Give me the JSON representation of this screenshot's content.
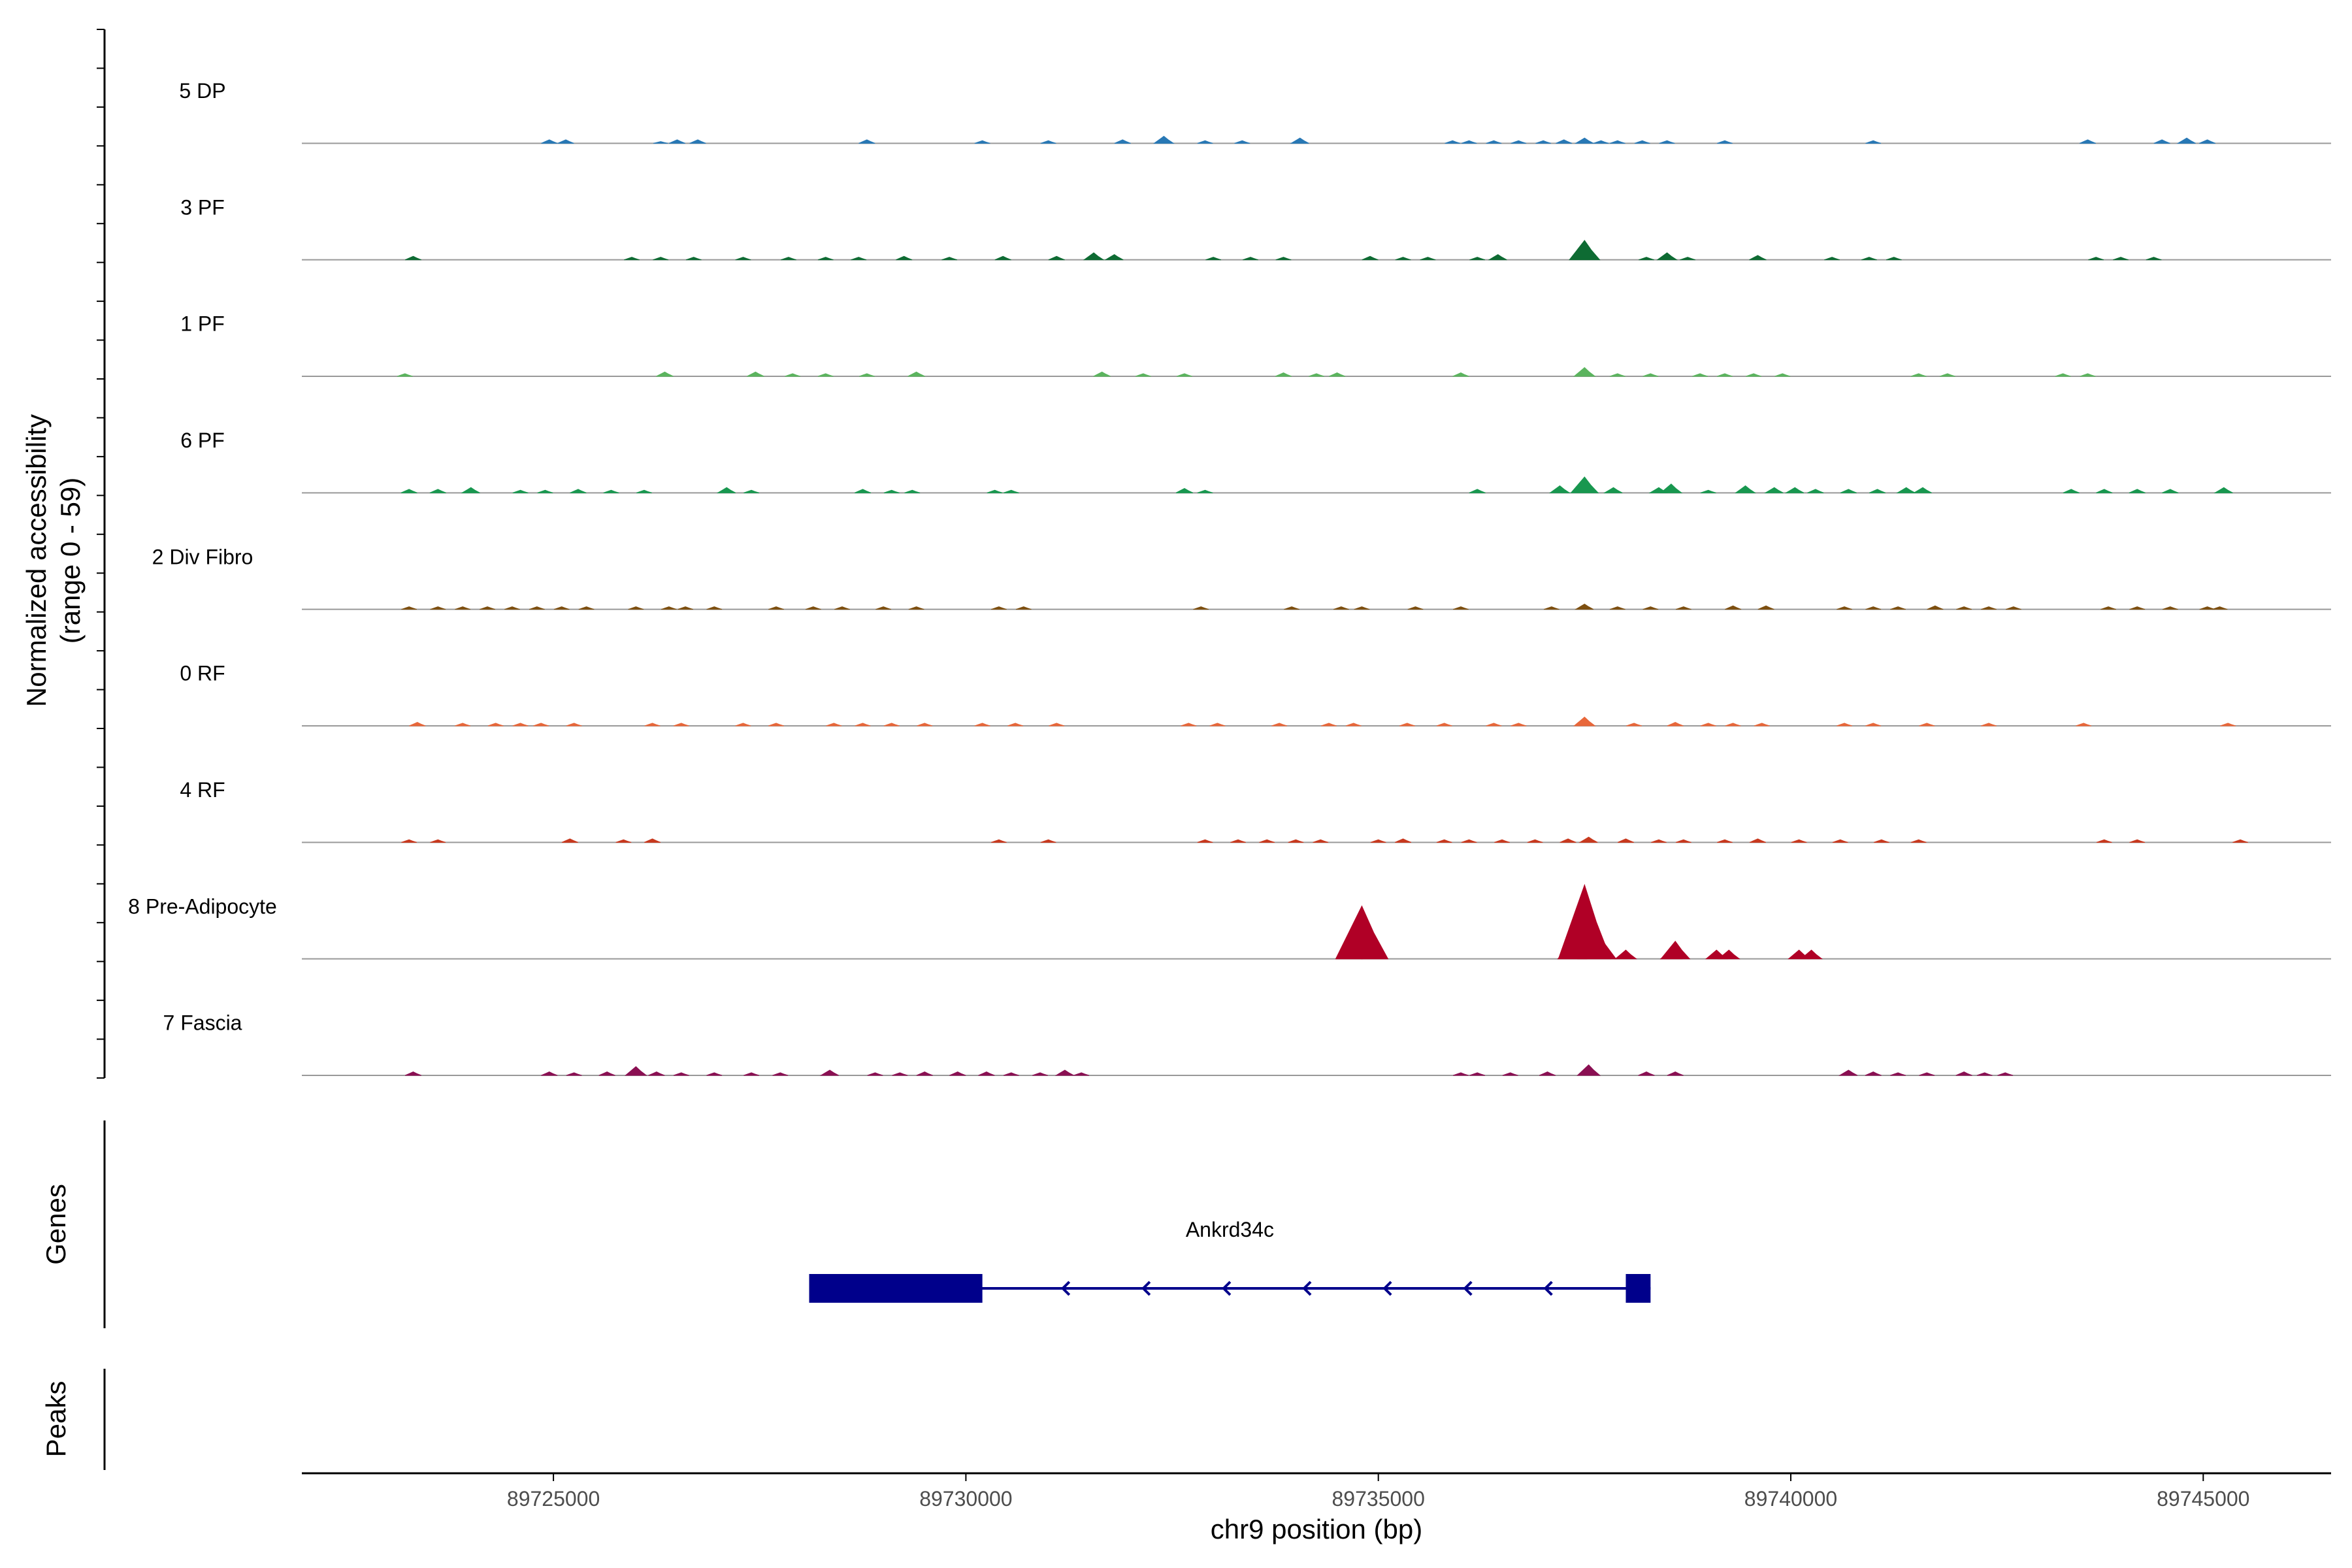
{
  "chart_data": {
    "type": "area",
    "title": "",
    "ylabel": [
      "Normalized accessibility",
      "(range 0 - 59)"
    ],
    "xlabel": "chr9 position (bp)",
    "ylim": [
      0,
      59
    ],
    "xlim": [
      89721950,
      89746550
    ],
    "xticks": [
      89725000,
      89730000,
      89735000,
      89740000,
      89745000
    ],
    "x_tick_labels": [
      "89725000",
      "89730000",
      "89735000",
      "89740000",
      "89745000"
    ],
    "tracks": [
      {
        "name": "5 DP",
        "color": "#2878b5",
        "peaks": [
          [
            89724950,
            2
          ],
          [
            89725150,
            2
          ],
          [
            89726300,
            1
          ],
          [
            89726500,
            2
          ],
          [
            89726750,
            2
          ],
          [
            89728800,
            2
          ],
          [
            89730200,
            1.5
          ],
          [
            89731000,
            1.5
          ],
          [
            89731900,
            2
          ],
          [
            89732400,
            4
          ],
          [
            89732900,
            1.5
          ],
          [
            89733350,
            1.5
          ],
          [
            89734050,
            3
          ],
          [
            89735900,
            1.5
          ],
          [
            89736100,
            1.5
          ],
          [
            89736400,
            1.5
          ],
          [
            89736700,
            1.5
          ],
          [
            89737000,
            1.5
          ],
          [
            89737250,
            2
          ],
          [
            89737500,
            3
          ],
          [
            89737700,
            1.5
          ],
          [
            89737900,
            1.5
          ],
          [
            89738200,
            1.5
          ],
          [
            89738500,
            1.5
          ],
          [
            89739200,
            1.5
          ],
          [
            89741000,
            1.5
          ],
          [
            89743600,
            2
          ],
          [
            89744500,
            2
          ],
          [
            89744800,
            3
          ],
          [
            89745050,
            2
          ]
        ]
      },
      {
        "name": "3 PF",
        "color": "#0e6b33",
        "peaks": [
          [
            89723300,
            2
          ],
          [
            89725950,
            1.5
          ],
          [
            89726300,
            1.5
          ],
          [
            89726700,
            1.5
          ],
          [
            89727300,
            1.5
          ],
          [
            89727850,
            1.5
          ],
          [
            89728300,
            1.5
          ],
          [
            89728700,
            1.5
          ],
          [
            89729250,
            2
          ],
          [
            89729800,
            1.5
          ],
          [
            89730450,
            2
          ],
          [
            89731100,
            2
          ],
          [
            89731550,
            4
          ],
          [
            89731800,
            3
          ],
          [
            89733000,
            1.5
          ],
          [
            89733450,
            1.5
          ],
          [
            89733850,
            1.5
          ],
          [
            89734900,
            2
          ],
          [
            89735300,
            1.5
          ],
          [
            89735600,
            1.5
          ],
          [
            89736200,
            1.5
          ],
          [
            89736450,
            3
          ],
          [
            89737500,
            11
          ],
          [
            89738250,
            1.5
          ],
          [
            89738500,
            4
          ],
          [
            89738750,
            1.5
          ],
          [
            89739600,
            2.5
          ],
          [
            89740500,
            1.5
          ],
          [
            89740950,
            1.5
          ],
          [
            89741250,
            1.5
          ],
          [
            89743700,
            1.5
          ],
          [
            89744000,
            1.5
          ],
          [
            89744400,
            1.5
          ]
        ]
      },
      {
        "name": "1 PF",
        "color": "#5bb45e",
        "peaks": [
          [
            89723200,
            1.5
          ],
          [
            89726350,
            2.5
          ],
          [
            89727450,
            2.5
          ],
          [
            89727900,
            1.5
          ],
          [
            89728300,
            1.5
          ],
          [
            89728800,
            1.5
          ],
          [
            89729400,
            2.5
          ],
          [
            89731650,
            2.5
          ],
          [
            89732150,
            1.5
          ],
          [
            89732650,
            1.5
          ],
          [
            89733850,
            2
          ],
          [
            89734250,
            1.5
          ],
          [
            89734500,
            2
          ],
          [
            89736000,
            2
          ],
          [
            89737500,
            5
          ],
          [
            89737900,
            1.5
          ],
          [
            89738300,
            1.5
          ],
          [
            89738900,
            1.5
          ],
          [
            89739200,
            1.5
          ],
          [
            89739550,
            1.5
          ],
          [
            89739900,
            1.5
          ],
          [
            89741550,
            1.5
          ],
          [
            89741900,
            1.5
          ],
          [
            89743300,
            1.5
          ],
          [
            89743600,
            1.5
          ]
        ]
      },
      {
        "name": "6 PF",
        "color": "#18974f",
        "peaks": [
          [
            89723250,
            2
          ],
          [
            89723600,
            2
          ],
          [
            89724000,
            3
          ],
          [
            89724600,
            1.5
          ],
          [
            89724900,
            1.5
          ],
          [
            89725300,
            2
          ],
          [
            89725700,
            1.5
          ],
          [
            89726100,
            1.5
          ],
          [
            89727100,
            3
          ],
          [
            89727400,
            1.5
          ],
          [
            89728750,
            2
          ],
          [
            89729100,
            1.5
          ],
          [
            89729350,
            1.5
          ],
          [
            89730350,
            1.5
          ],
          [
            89730550,
            1.5
          ],
          [
            89732650,
            2.5
          ],
          [
            89732900,
            1.5
          ],
          [
            89736200,
            2
          ],
          [
            89737200,
            4
          ],
          [
            89737500,
            9
          ],
          [
            89737850,
            3
          ],
          [
            89738400,
            3
          ],
          [
            89738550,
            5
          ],
          [
            89739000,
            1.5
          ],
          [
            89739450,
            4
          ],
          [
            89739800,
            3
          ],
          [
            89740050,
            3
          ],
          [
            89740300,
            2
          ],
          [
            89740700,
            2
          ],
          [
            89741050,
            2
          ],
          [
            89741400,
            3
          ],
          [
            89741600,
            3
          ],
          [
            89743400,
            2
          ],
          [
            89743800,
            2
          ],
          [
            89744200,
            2
          ],
          [
            89744600,
            2
          ],
          [
            89745250,
            3
          ]
        ]
      },
      {
        "name": "2 Div Fibro",
        "color": "#7d4f10",
        "peaks": [
          [
            89723250,
            1.5
          ],
          [
            89723600,
            1.5
          ],
          [
            89723900,
            1.5
          ],
          [
            89724200,
            1.5
          ],
          [
            89724500,
            1.5
          ],
          [
            89724800,
            1.5
          ],
          [
            89725100,
            1.5
          ],
          [
            89725400,
            1.5
          ],
          [
            89726000,
            1.5
          ],
          [
            89726400,
            1.5
          ],
          [
            89726600,
            1.5
          ],
          [
            89726950,
            1.5
          ],
          [
            89727700,
            1.5
          ],
          [
            89728150,
            1.5
          ],
          [
            89728500,
            1.5
          ],
          [
            89729000,
            1.5
          ],
          [
            89729400,
            1.5
          ],
          [
            89730400,
            1.5
          ],
          [
            89730700,
            1.5
          ],
          [
            89732850,
            1.5
          ],
          [
            89733950,
            1.5
          ],
          [
            89734550,
            1.5
          ],
          [
            89734800,
            1.5
          ],
          [
            89735450,
            1.5
          ],
          [
            89736000,
            1.5
          ],
          [
            89737100,
            1.5
          ],
          [
            89737500,
            3
          ],
          [
            89737900,
            1.5
          ],
          [
            89738300,
            1.5
          ],
          [
            89738700,
            1.5
          ],
          [
            89739300,
            2
          ],
          [
            89739700,
            2
          ],
          [
            89740650,
            1.5
          ],
          [
            89741000,
            1.5
          ],
          [
            89741300,
            1.5
          ],
          [
            89741750,
            2
          ],
          [
            89742100,
            1.5
          ],
          [
            89742400,
            1.5
          ],
          [
            89742700,
            1.5
          ],
          [
            89743850,
            1.5
          ],
          [
            89744200,
            1.5
          ],
          [
            89744600,
            1.5
          ],
          [
            89745050,
            1.5
          ],
          [
            89745200,
            1.5
          ]
        ]
      },
      {
        "name": "0 RF",
        "color": "#e8673a",
        "peaks": [
          [
            89723350,
            2
          ],
          [
            89723900,
            1.5
          ],
          [
            89724300,
            1.5
          ],
          [
            89724600,
            1.5
          ],
          [
            89724850,
            1.5
          ],
          [
            89725250,
            1.5
          ],
          [
            89726200,
            1.5
          ],
          [
            89726550,
            1.5
          ],
          [
            89727300,
            1.5
          ],
          [
            89727700,
            1.5
          ],
          [
            89728400,
            1.5
          ],
          [
            89728750,
            1.5
          ],
          [
            89729100,
            1.5
          ],
          [
            89729500,
            1.5
          ],
          [
            89730200,
            1.5
          ],
          [
            89730600,
            1.5
          ],
          [
            89731100,
            1.5
          ],
          [
            89732700,
            1.5
          ],
          [
            89733050,
            1.5
          ],
          [
            89733800,
            1.5
          ],
          [
            89734400,
            1.5
          ],
          [
            89734700,
            1.5
          ],
          [
            89735350,
            1.5
          ],
          [
            89735800,
            1.5
          ],
          [
            89736400,
            1.5
          ],
          [
            89736700,
            1.5
          ],
          [
            89737500,
            5
          ],
          [
            89738100,
            1.5
          ],
          [
            89738600,
            2
          ],
          [
            89739000,
            1.5
          ],
          [
            89739300,
            1.5
          ],
          [
            89739650,
            1.5
          ],
          [
            89740650,
            1.5
          ],
          [
            89741000,
            1.5
          ],
          [
            89741650,
            1.5
          ],
          [
            89742400,
            1.5
          ],
          [
            89743550,
            1.5
          ],
          [
            89745300,
            1.5
          ]
        ]
      },
      {
        "name": "4 RF",
        "color": "#c8391e",
        "peaks": [
          [
            89723250,
            1.5
          ],
          [
            89723600,
            1.5
          ],
          [
            89725200,
            2
          ],
          [
            89725850,
            1.5
          ],
          [
            89726200,
            2
          ],
          [
            89730400,
            1.5
          ],
          [
            89731000,
            1.5
          ],
          [
            89732900,
            1.5
          ],
          [
            89733300,
            1.5
          ],
          [
            89733650,
            1.5
          ],
          [
            89734000,
            1.5
          ],
          [
            89734300,
            1.5
          ],
          [
            89735000,
            1.5
          ],
          [
            89735300,
            2
          ],
          [
            89735800,
            1.5
          ],
          [
            89736100,
            1.5
          ],
          [
            89736500,
            1.5
          ],
          [
            89736900,
            1.5
          ],
          [
            89737300,
            2
          ],
          [
            89737550,
            3
          ],
          [
            89738000,
            2
          ],
          [
            89738400,
            1.5
          ],
          [
            89738700,
            1.5
          ],
          [
            89739200,
            1.5
          ],
          [
            89739600,
            2
          ],
          [
            89740100,
            1.5
          ],
          [
            89740600,
            1.5
          ],
          [
            89741100,
            1.5
          ],
          [
            89741550,
            1.5
          ],
          [
            89743800,
            1.5
          ],
          [
            89744200,
            1.5
          ],
          [
            89745450,
            1.5
          ]
        ]
      },
      {
        "name": "8 Pre-Adipocyte",
        "color": "#b00026",
        "peaks": [
          [
            89734650,
            8
          ],
          [
            89734800,
            30
          ],
          [
            89734950,
            8
          ],
          [
            89737350,
            10
          ],
          [
            89737500,
            42
          ],
          [
            89737650,
            16
          ],
          [
            89738000,
            5
          ],
          [
            89738600,
            10
          ],
          [
            89738550,
            5
          ],
          [
            89739100,
            5
          ],
          [
            89739250,
            5
          ],
          [
            89740100,
            5
          ],
          [
            89740250,
            5
          ]
        ]
      },
      {
        "name": "7 Fascia",
        "color": "#8a0f52",
        "peaks": [
          [
            89723300,
            2
          ],
          [
            89724950,
            2
          ],
          [
            89725250,
            1.5
          ],
          [
            89725650,
            2
          ],
          [
            89726000,
            5
          ],
          [
            89726250,
            2
          ],
          [
            89726550,
            1.5
          ],
          [
            89726950,
            1.5
          ],
          [
            89727400,
            1.5
          ],
          [
            89727750,
            1.5
          ],
          [
            89728350,
            3
          ],
          [
            89728900,
            1.5
          ],
          [
            89729200,
            1.5
          ],
          [
            89729500,
            2
          ],
          [
            89729900,
            2
          ],
          [
            89730250,
            2
          ],
          [
            89730550,
            1.5
          ],
          [
            89730900,
            1.5
          ],
          [
            89731200,
            3
          ],
          [
            89731400,
            1.5
          ],
          [
            89736000,
            1.5
          ],
          [
            89736200,
            1.5
          ],
          [
            89736600,
            1.5
          ],
          [
            89737050,
            2
          ],
          [
            89737550,
            6
          ],
          [
            89738250,
            2
          ],
          [
            89738600,
            2
          ],
          [
            89740700,
            3
          ],
          [
            89741000,
            2
          ],
          [
            89741300,
            1.5
          ],
          [
            89741650,
            1.5
          ],
          [
            89742100,
            2
          ],
          [
            89742350,
            1.5
          ],
          [
            89742600,
            1.5
          ]
        ]
      }
    ],
    "genes": [
      {
        "name": "Ankrd34c",
        "start": 89728100,
        "end": 89738300,
        "strand": "-",
        "exons": [
          [
            89728100,
            89730200
          ],
          [
            89738000,
            89738300
          ]
        ]
      }
    ],
    "side_labels": {
      "genes": "Genes",
      "peaks": "Peaks"
    },
    "colors": {
      "axis": "#000000",
      "baseline": "#999999",
      "gene": "#00008b",
      "tick_text": "#4d4d4d"
    }
  }
}
